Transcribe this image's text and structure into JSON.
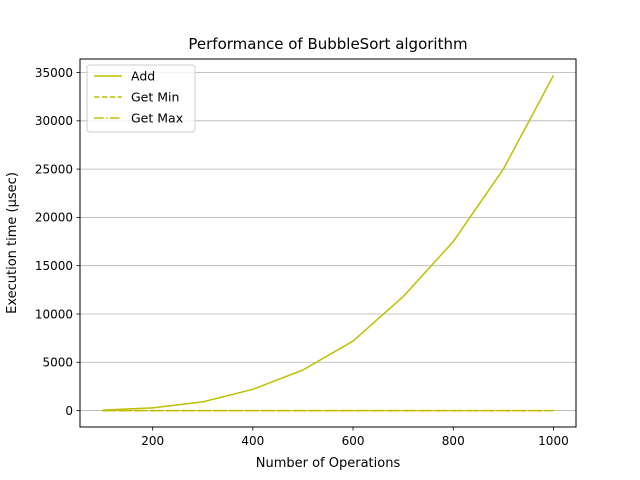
{
  "chart_data": {
    "type": "line",
    "title": "Performance of BubbleSort algorithm",
    "xlabel": "Number of Operations",
    "ylabel": "Execution time (μsec)",
    "x": [
      100,
      200,
      300,
      400,
      500,
      600,
      700,
      800,
      900,
      1000
    ],
    "xlim": [
      55,
      1045
    ],
    "ylim": [
      -1700,
      36400
    ],
    "xticks": [
      200,
      400,
      600,
      800,
      1000
    ],
    "yticks": [
      0,
      5000,
      10000,
      15000,
      20000,
      25000,
      30000,
      35000
    ],
    "grid": "horizontal",
    "legend_position": "top-left",
    "series": [
      {
        "name": "Add",
        "style": "solid",
        "color": "#bfbf00",
        "values": [
          50,
          280,
          900,
          2200,
          4200,
          7200,
          11800,
          17500,
          25000,
          34700
        ]
      },
      {
        "name": "Get Min",
        "style": "dashed",
        "color": "#bfbf00",
        "values": [
          1,
          1,
          1,
          1,
          1,
          1,
          1,
          1,
          1,
          1
        ]
      },
      {
        "name": "Get Max",
        "style": "dashdot",
        "color": "#bfbf00",
        "values": [
          1,
          1,
          1,
          1,
          1,
          1,
          1,
          1,
          1,
          1
        ]
      }
    ]
  }
}
